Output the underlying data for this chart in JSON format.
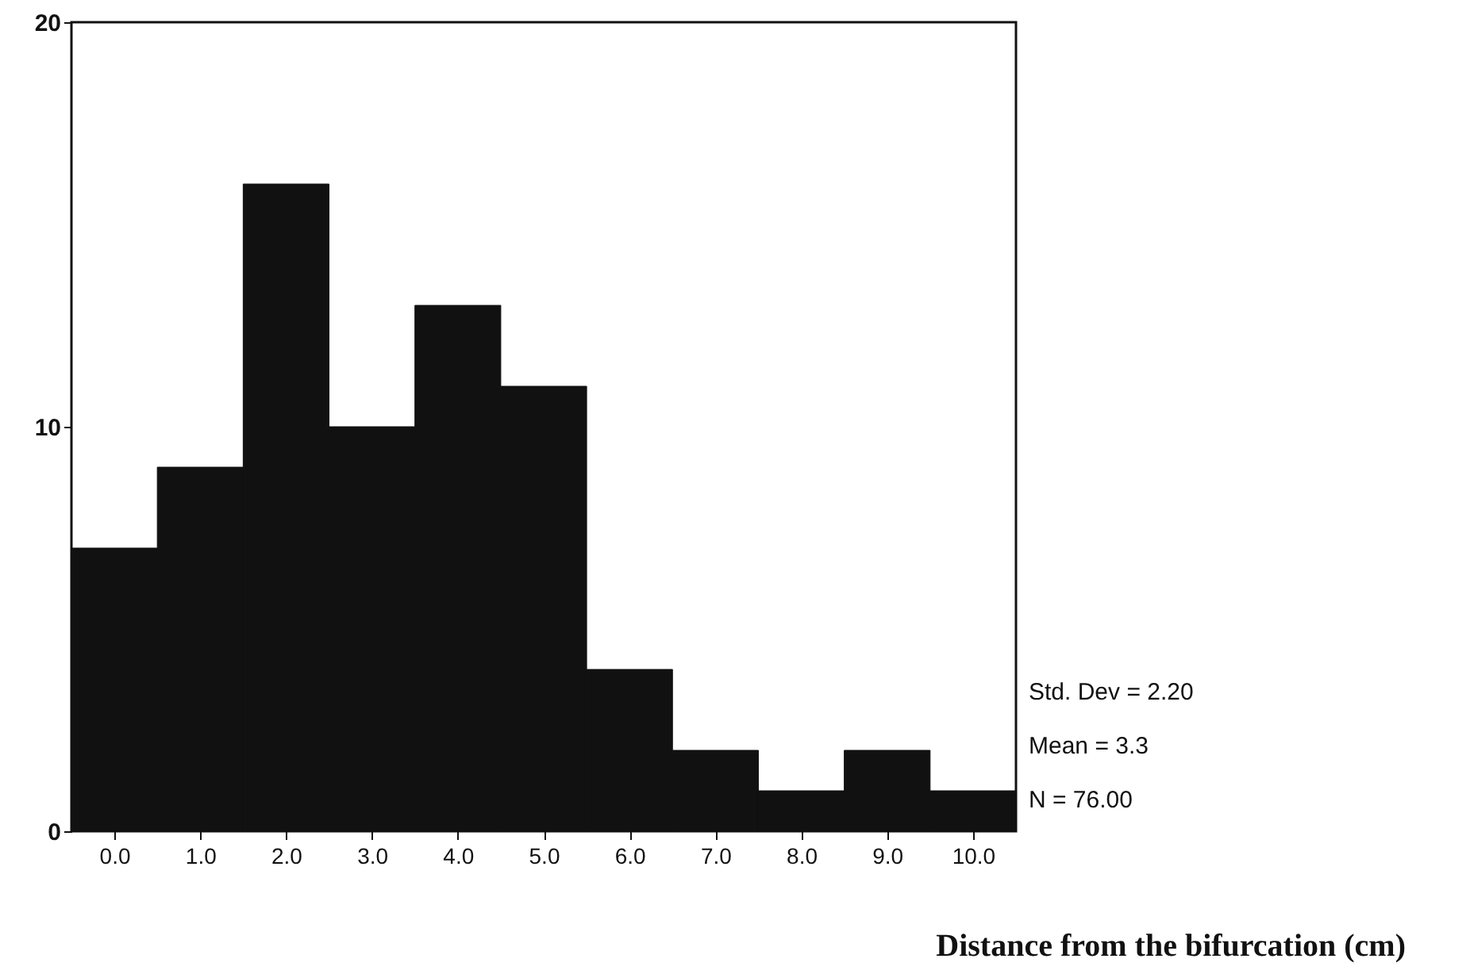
{
  "chart_data": {
    "type": "histogram",
    "xlabel": "Distance from the bifurcation (cm)",
    "bins": [
      -0.5,
      0.5,
      1.5,
      2.5,
      3.5,
      4.5,
      5.5,
      6.5,
      7.5,
      8.5,
      9.5,
      10.5
    ],
    "values": [
      7,
      9,
      16,
      10,
      13,
      11,
      4,
      2,
      1,
      2,
      1
    ],
    "color": "#111111",
    "xlim": [
      -0.5,
      10.5
    ],
    "xticks": [
      {
        "value": 0,
        "label": "0.0"
      },
      {
        "value": 1,
        "label": "1.0"
      },
      {
        "value": 2,
        "label": "2.0"
      },
      {
        "value": 3,
        "label": "3.0"
      },
      {
        "value": 4,
        "label": "4.0"
      },
      {
        "value": 5,
        "label": "5.0"
      },
      {
        "value": 6,
        "label": "6.0"
      },
      {
        "value": 7,
        "label": "7.0"
      },
      {
        "value": 8,
        "label": "8.0"
      },
      {
        "value": 9,
        "label": "9.0"
      },
      {
        "value": 10,
        "label": "10.0"
      }
    ],
    "ylim": [
      0,
      20
    ],
    "yticks": [
      0,
      10,
      20
    ],
    "grid": false,
    "annotations": [
      "Std. Dev = 2.20",
      "Mean = 3.3",
      "N = 76.00"
    ]
  }
}
